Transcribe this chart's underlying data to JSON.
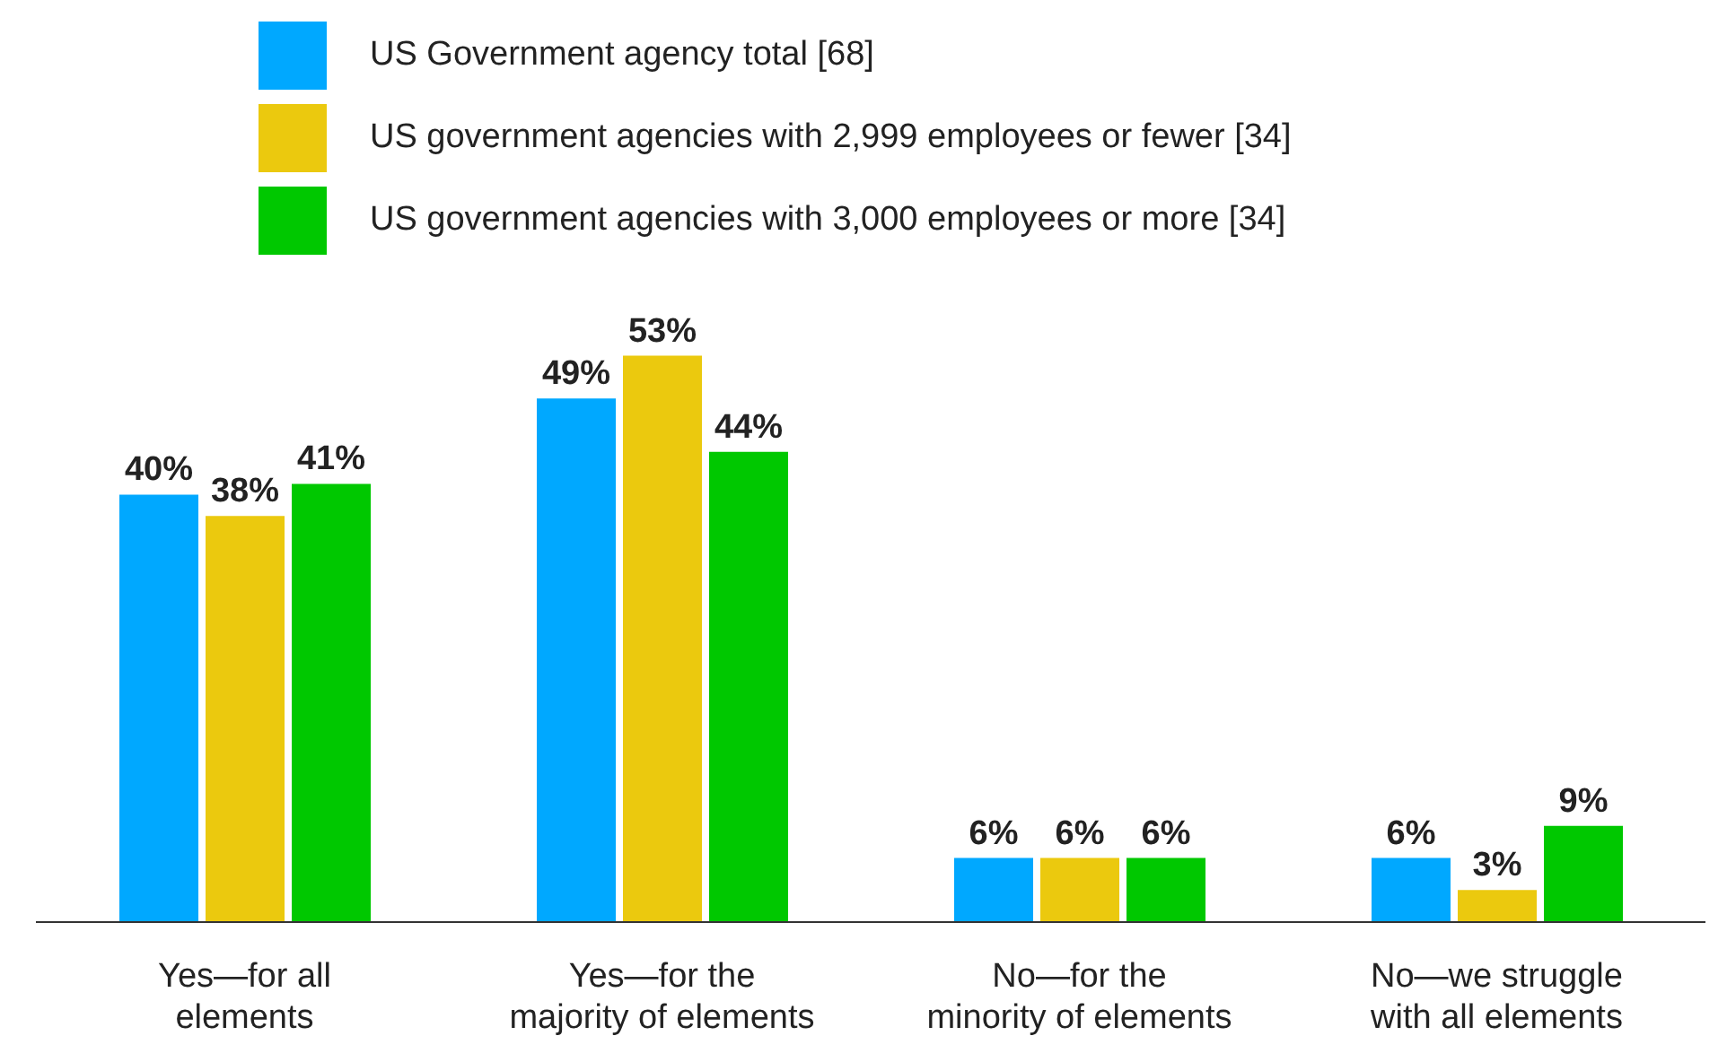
{
  "chart_data": {
    "type": "bar",
    "categories": [
      "Yes—for all elements",
      "Yes—for the majority of elements",
      "No—for the minority of elements",
      "No—we struggle with all elements"
    ],
    "series": [
      {
        "name": "US Government agency total [68]",
        "color": "#00a8ff",
        "values": [
          40,
          49,
          6,
          6
        ],
        "value_labels": [
          "40%",
          "49%",
          "6%",
          "6%"
        ]
      },
      {
        "name": "US government agencies with 2,999 employees or fewer [34]",
        "color": "#ebc90e",
        "values": [
          38,
          53,
          6,
          3
        ],
        "value_labels": [
          "38%",
          "53%",
          "6%",
          "3%"
        ]
      },
      {
        "name": "US government agencies with 3,000 employees or more [34]",
        "color": "#00c800",
        "values": [
          41,
          44,
          6,
          9
        ],
        "value_labels": [
          "41%",
          "44%",
          "6%",
          "9%"
        ]
      }
    ],
    "legend": "top",
    "grid": false
  }
}
